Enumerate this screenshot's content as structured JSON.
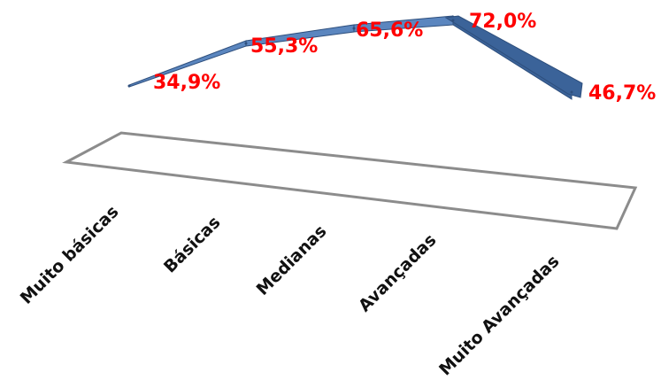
{
  "chart_data": {
    "type": "line",
    "style": "3d-ribbon",
    "title": "",
    "xlabel": "",
    "ylabel": "",
    "categories": [
      "Muito básicas",
      "Básicas",
      "Medianas",
      "Avançadas",
      "Muito Avançadas"
    ],
    "series": [
      {
        "values": [
          34.9,
          55.3,
          65.6,
          72.0,
          46.7
        ]
      }
    ],
    "data_labels": [
      "34,9%",
      "55,3%",
      "65,6%",
      "72,0%",
      "46,7%"
    ],
    "ylim": [
      0,
      80
    ],
    "grid": false,
    "legend": "none",
    "colors": {
      "ribbon_top": "#5b86bf",
      "ribbon_side": "#3b6399",
      "ribbon_edge": "#2e4f7d",
      "labels": "#ff0000",
      "floor_edge": "#8c8c8c",
      "category_text": "#111111"
    }
  }
}
